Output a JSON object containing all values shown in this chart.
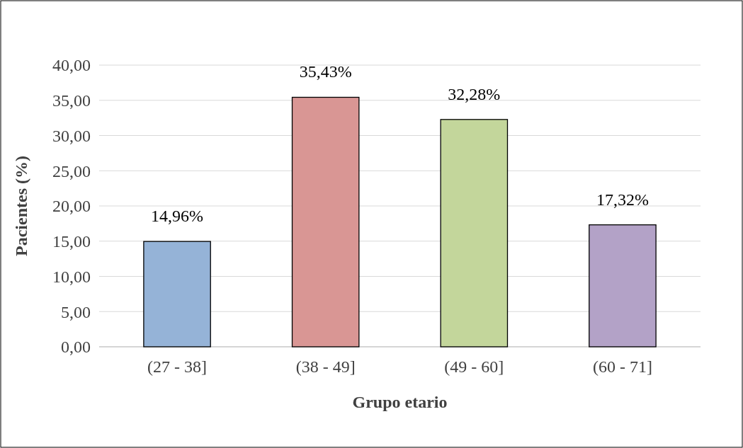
{
  "chart_data": {
    "type": "bar",
    "xlabel": "Grupo etario",
    "ylabel": "Pacientes (%)",
    "categories": [
      "(27 - 38]",
      "(38 - 49]",
      "(49 - 60]",
      "(60 - 71]"
    ],
    "values": [
      14.96,
      35.43,
      32.28,
      17.32
    ],
    "colors": [
      "#95b3d7",
      "#d99694",
      "#c3d69b",
      "#b3a2c7"
    ],
    "value_labels": [
      "14,96%",
      "35,43%",
      "32,28%",
      "17,32%"
    ],
    "ylim": [
      0,
      40
    ],
    "yticks": [
      {
        "value": 0,
        "label": "0,00"
      },
      {
        "value": 5,
        "label": "5,00"
      },
      {
        "value": 10,
        "label": "10,00"
      },
      {
        "value": 15,
        "label": "15,00"
      },
      {
        "value": 20,
        "label": "20,00"
      },
      {
        "value": 25,
        "label": "25,00"
      },
      {
        "value": 30,
        "label": "30,00"
      },
      {
        "value": 35,
        "label": "35,00"
      },
      {
        "value": 40,
        "label": "40,00"
      }
    ],
    "grid": "y"
  }
}
